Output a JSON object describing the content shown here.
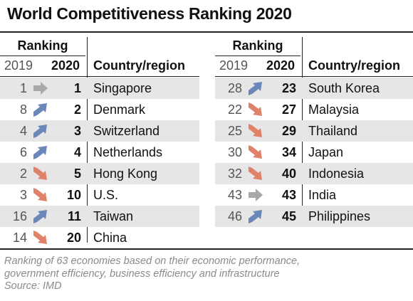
{
  "title": "World Competitiveness Ranking 2020",
  "headers": {
    "ranking": "Ranking",
    "year_prev": "2019",
    "year_curr": "2020",
    "country": "Country/region"
  },
  "colors": {
    "up": "#6b86b9",
    "down": "#e0826a",
    "same": "#a8a8a8",
    "shade": "#e6e6e6"
  },
  "left_rows": [
    {
      "r2019": "1",
      "r2020": "1",
      "country": "Singapore",
      "trend": "same"
    },
    {
      "r2019": "8",
      "r2020": "2",
      "country": "Denmark",
      "trend": "up"
    },
    {
      "r2019": "4",
      "r2020": "3",
      "country": "Switzerland",
      "trend": "up"
    },
    {
      "r2019": "6",
      "r2020": "4",
      "country": "Netherlands",
      "trend": "up"
    },
    {
      "r2019": "2",
      "r2020": "5",
      "country": "Hong Kong",
      "trend": "down"
    },
    {
      "r2019": "3",
      "r2020": "10",
      "country": "U.S.",
      "trend": "down"
    },
    {
      "r2019": "16",
      "r2020": "11",
      "country": "Taiwan",
      "trend": "up"
    },
    {
      "r2019": "14",
      "r2020": "20",
      "country": "China",
      "trend": "down"
    }
  ],
  "right_rows": [
    {
      "r2019": "28",
      "r2020": "23",
      "country": "South Korea",
      "trend": "up"
    },
    {
      "r2019": "22",
      "r2020": "27",
      "country": "Malaysia",
      "trend": "down"
    },
    {
      "r2019": "25",
      "r2020": "29",
      "country": "Thailand",
      "trend": "down"
    },
    {
      "r2019": "30",
      "r2020": "34",
      "country": "Japan",
      "trend": "down"
    },
    {
      "r2019": "32",
      "r2020": "40",
      "country": "Indonesia",
      "trend": "down"
    },
    {
      "r2019": "43",
      "r2020": "43",
      "country": "India",
      "trend": "same"
    },
    {
      "r2019": "46",
      "r2020": "45",
      "country": "Philippines",
      "trend": "up"
    }
  ],
  "footnote": {
    "line1": "Ranking of 63 economies based on their economic performance,",
    "line2": "government efficiency, business efficiency and infrastructure",
    "line3": "Source: IMD"
  }
}
